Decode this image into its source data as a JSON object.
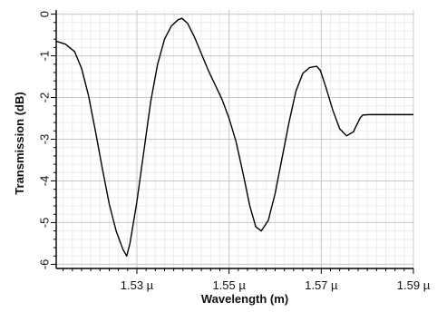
{
  "chart_data": {
    "type": "line",
    "xlabel": "Wavelength (m)",
    "ylabel": "Transmission (dB)",
    "xlim": [
      1.5125,
      1.59
    ],
    "ylim": [
      -6.1,
      0.1
    ],
    "x_unit": "µm",
    "x_ticks": [
      {
        "value": 1.53,
        "label": "1.53 µ"
      },
      {
        "value": 1.55,
        "label": "1.55 µ"
      },
      {
        "value": 1.57,
        "label": "1.57 µ"
      },
      {
        "value": 1.59,
        "label": "1.59 µ"
      }
    ],
    "y_ticks": [
      {
        "value": 0,
        "label": "0"
      },
      {
        "value": -1,
        "label": "-1"
      },
      {
        "value": -2,
        "label": "-2"
      },
      {
        "value": -3,
        "label": "-3"
      },
      {
        "value": -4,
        "label": "-4"
      },
      {
        "value": -5,
        "label": "-5"
      },
      {
        "value": -6,
        "label": "-6"
      }
    ],
    "grid": true,
    "colors": {
      "line": "#000000",
      "major_grid": "#c8c8c8",
      "minor_grid": "#ececec",
      "axis": "#000000"
    },
    "series": [
      {
        "x": [
          1.5125,
          1.5145,
          1.5165,
          1.518,
          1.5195,
          1.521,
          1.5225,
          1.524,
          1.5255,
          1.527,
          1.5278,
          1.5285,
          1.53,
          1.5315,
          1.533,
          1.5345,
          1.536,
          1.5375,
          1.539,
          1.5398,
          1.541,
          1.5425,
          1.544,
          1.5455,
          1.547,
          1.5485,
          1.55,
          1.5515,
          1.553,
          1.5545,
          1.5558,
          1.557,
          1.5585,
          1.56,
          1.5615,
          1.563,
          1.5645,
          1.566,
          1.5675,
          1.569,
          1.5698,
          1.571,
          1.5725,
          1.574,
          1.5755,
          1.577,
          1.5775,
          1.5785,
          1.579,
          1.5805,
          1.59
        ],
        "y": [
          -0.65,
          -0.72,
          -0.9,
          -1.3,
          -1.95,
          -2.8,
          -3.7,
          -4.55,
          -5.2,
          -5.65,
          -5.8,
          -5.5,
          -4.5,
          -3.3,
          -2.1,
          -1.2,
          -0.6,
          -0.28,
          -0.13,
          -0.1,
          -0.22,
          -0.55,
          -0.95,
          -1.35,
          -1.7,
          -2.05,
          -2.5,
          -3.05,
          -3.8,
          -4.6,
          -5.1,
          -5.2,
          -4.95,
          -4.3,
          -3.45,
          -2.6,
          -1.85,
          -1.42,
          -1.28,
          -1.25,
          -1.35,
          -1.75,
          -2.3,
          -2.75,
          -2.92,
          -2.82,
          -2.7,
          -2.48,
          -2.42,
          -2.41,
          -2.41
        ]
      }
    ]
  }
}
